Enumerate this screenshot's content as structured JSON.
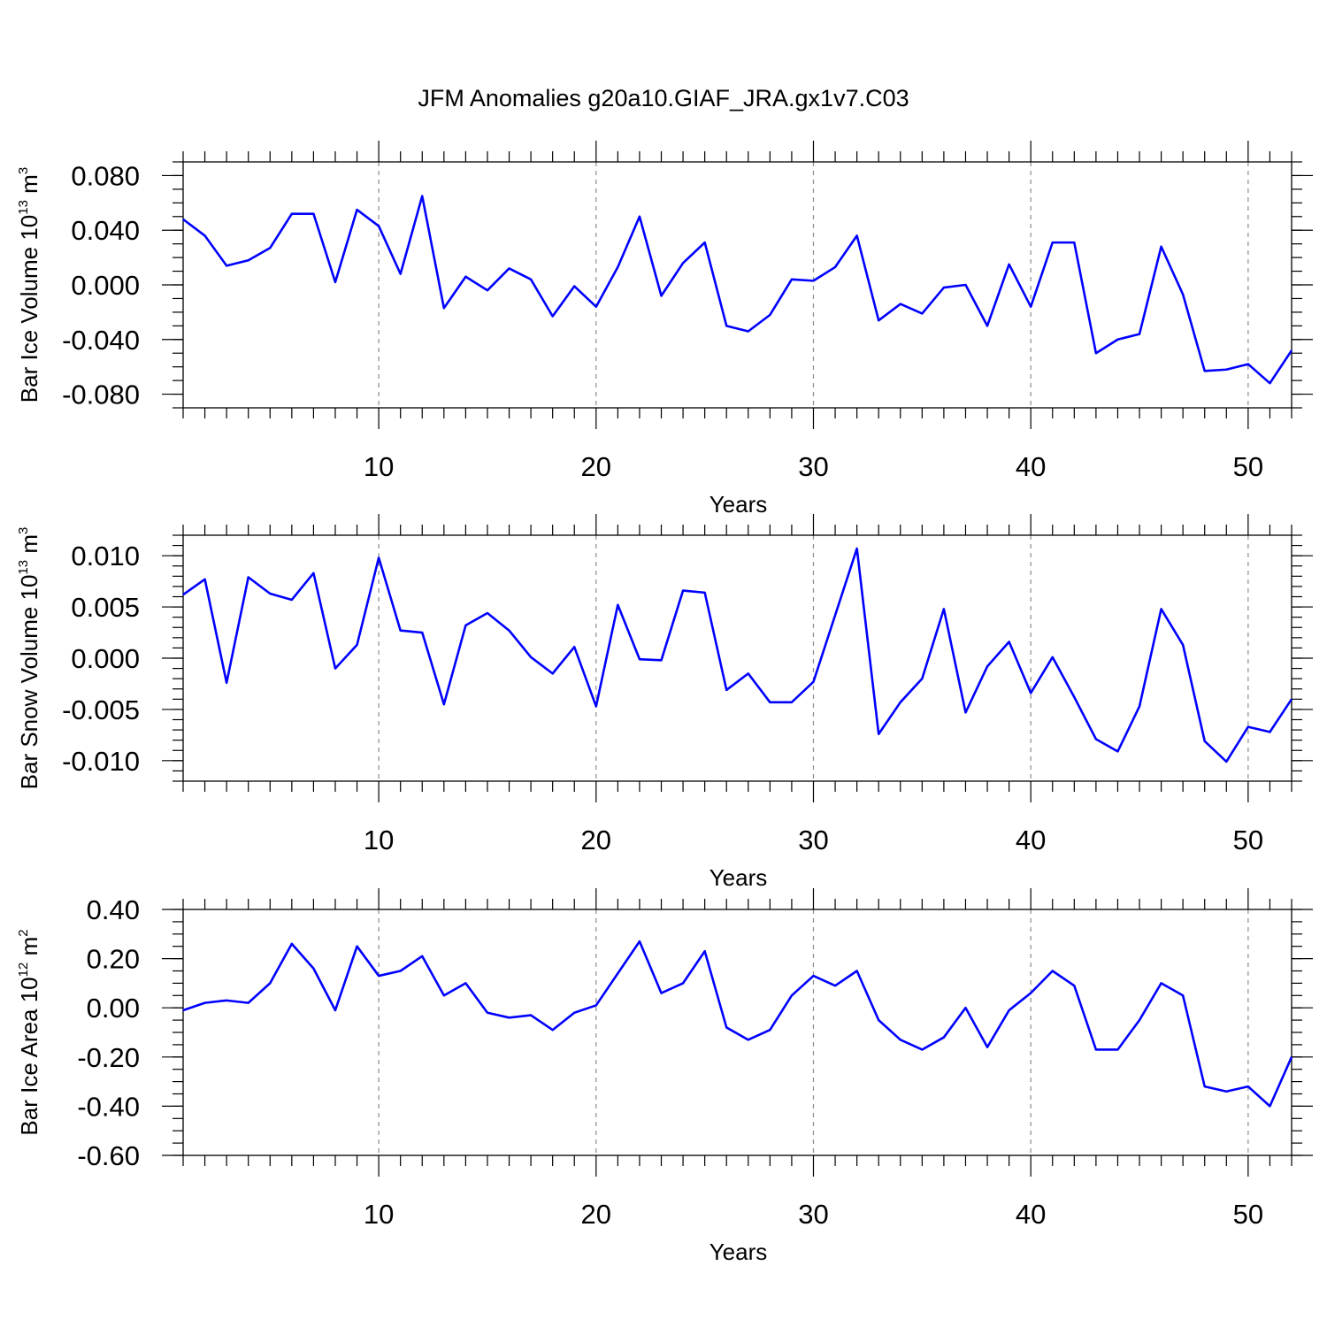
{
  "title": "JFM Anomalies g20a10.GIAF_JRA.gx1v7.C03",
  "line_color": "#0000ff",
  "chart_data": [
    {
      "type": "line",
      "name": "ice-volume",
      "title": "",
      "xlabel": "Years",
      "ylabel": {
        "pre": "Bar Ice Volume 10",
        "sup1": "13",
        "mid": " m",
        "sup2": "3"
      },
      "xlim": [
        1,
        52
      ],
      "ylim": [
        -0.09,
        0.09
      ],
      "xticks": [
        10,
        20,
        30,
        40,
        50
      ],
      "xtick_labels": [
        "10",
        "20",
        "30",
        "40",
        "50"
      ],
      "yticks": [
        -0.08,
        -0.04,
        0.0,
        0.04,
        0.08
      ],
      "ytick_labels": [
        "-0.080",
        "-0.040",
        "0.000",
        "0.040",
        "0.080"
      ],
      "y_minor_step": 0.01,
      "grid": "dashed vertical at major x ticks",
      "x": [
        1,
        2,
        3,
        4,
        5,
        6,
        7,
        8,
        9,
        10,
        11,
        12,
        13,
        14,
        15,
        16,
        17,
        18,
        19,
        20,
        21,
        22,
        23,
        24,
        25,
        26,
        27,
        28,
        29,
        30,
        31,
        32,
        33,
        34,
        35,
        36,
        37,
        38,
        39,
        40,
        41,
        42,
        43,
        44,
        45,
        46,
        47,
        48,
        49,
        50,
        51,
        52
      ],
      "values": [
        0.048,
        0.036,
        0.014,
        0.018,
        0.027,
        0.052,
        0.052,
        0.002,
        0.055,
        0.043,
        0.008,
        0.065,
        -0.017,
        0.006,
        -0.004,
        0.012,
        0.004,
        -0.023,
        -0.001,
        -0.016,
        0.013,
        0.05,
        -0.008,
        0.016,
        0.031,
        -0.03,
        -0.034,
        -0.022,
        0.004,
        0.003,
        0.013,
        0.036,
        -0.026,
        -0.014,
        -0.021,
        -0.002,
        0.0,
        -0.03,
        0.015,
        -0.016,
        0.031,
        0.031,
        -0.05,
        -0.04,
        -0.036,
        0.028,
        -0.007,
        -0.063,
        -0.062,
        -0.058,
        -0.072,
        -0.048
      ]
    },
    {
      "type": "line",
      "name": "snow-volume",
      "title": "",
      "xlabel": "Years",
      "ylabel": {
        "pre": "Bar Snow Volume 10",
        "sup1": "13",
        "mid": " m",
        "sup2": "3"
      },
      "xlim": [
        1,
        52
      ],
      "ylim": [
        -0.012,
        0.012
      ],
      "xticks": [
        10,
        20,
        30,
        40,
        50
      ],
      "xtick_labels": [
        "10",
        "20",
        "30",
        "40",
        "50"
      ],
      "yticks": [
        -0.01,
        -0.005,
        0.0,
        0.005,
        0.01
      ],
      "ytick_labels": [
        "-0.010",
        "-0.005",
        "0.000",
        "0.005",
        "0.010"
      ],
      "y_minor_step": 0.001,
      "grid": "dashed vertical at major x ticks",
      "x": [
        1,
        2,
        3,
        4,
        5,
        6,
        7,
        8,
        9,
        10,
        11,
        12,
        13,
        14,
        15,
        16,
        17,
        18,
        19,
        20,
        21,
        22,
        23,
        24,
        25,
        26,
        27,
        28,
        29,
        30,
        31,
        32,
        33,
        34,
        35,
        36,
        37,
        38,
        39,
        40,
        41,
        42,
        43,
        44,
        45,
        46,
        47,
        48,
        49,
        50,
        51,
        52
      ],
      "values": [
        0.0062,
        0.0077,
        -0.0024,
        0.0079,
        0.0063,
        0.0057,
        0.0083,
        -0.001,
        0.0013,
        0.0098,
        0.0027,
        0.0025,
        -0.0045,
        0.0032,
        0.0044,
        0.0027,
        0.0001,
        -0.0015,
        0.0011,
        -0.0047,
        0.0052,
        -0.0001,
        -0.0002,
        0.0066,
        0.0064,
        -0.0031,
        -0.0015,
        -0.0043,
        -0.0043,
        -0.0023,
        0.0042,
        0.0107,
        -0.0074,
        -0.0043,
        -0.002,
        0.0048,
        -0.0053,
        -0.0008,
        0.0016,
        -0.0034,
        0.0001,
        -0.0038,
        -0.0079,
        -0.0091,
        -0.0047,
        0.0048,
        0.0013,
        -0.0081,
        -0.0101,
        -0.0067,
        -0.0072,
        -0.004
      ]
    },
    {
      "type": "line",
      "name": "ice-area",
      "title": "",
      "xlabel": "Years",
      "ylabel": {
        "pre": "Bar Ice Area 10",
        "sup1": "12",
        "mid": " m",
        "sup2": "2"
      },
      "xlim": [
        1,
        52
      ],
      "ylim": [
        -0.6,
        0.4
      ],
      "xticks": [
        10,
        20,
        30,
        40,
        50
      ],
      "xtick_labels": [
        "10",
        "20",
        "30",
        "40",
        "50"
      ],
      "yticks": [
        -0.6,
        -0.4,
        -0.2,
        0.0,
        0.2,
        0.4
      ],
      "ytick_labels": [
        "-0.60",
        "-0.40",
        "-0.20",
        "0.00",
        "0.20",
        "0.40"
      ],
      "y_minor_step": 0.05,
      "grid": "dashed vertical at major x ticks",
      "x": [
        1,
        2,
        3,
        4,
        5,
        6,
        7,
        8,
        9,
        10,
        11,
        12,
        13,
        14,
        15,
        16,
        17,
        18,
        19,
        20,
        21,
        22,
        23,
        24,
        25,
        26,
        27,
        28,
        29,
        30,
        31,
        32,
        33,
        34,
        35,
        36,
        37,
        38,
        39,
        40,
        41,
        42,
        43,
        44,
        45,
        46,
        47,
        48,
        49,
        50,
        51,
        52
      ],
      "values": [
        -0.01,
        0.02,
        0.03,
        0.02,
        0.1,
        0.26,
        0.16,
        -0.01,
        0.25,
        0.13,
        0.15,
        0.21,
        0.05,
        0.1,
        -0.02,
        -0.04,
        -0.03,
        -0.09,
        -0.02,
        0.01,
        0.14,
        0.27,
        0.06,
        0.1,
        0.23,
        -0.08,
        -0.13,
        -0.09,
        0.05,
        0.13,
        0.09,
        0.15,
        -0.05,
        -0.13,
        -0.17,
        -0.12,
        0.0,
        -0.16,
        -0.01,
        0.06,
        0.15,
        0.09,
        -0.17,
        -0.17,
        -0.05,
        0.1,
        0.05,
        -0.32,
        -0.34,
        -0.32,
        -0.4,
        -0.2
      ]
    }
  ]
}
